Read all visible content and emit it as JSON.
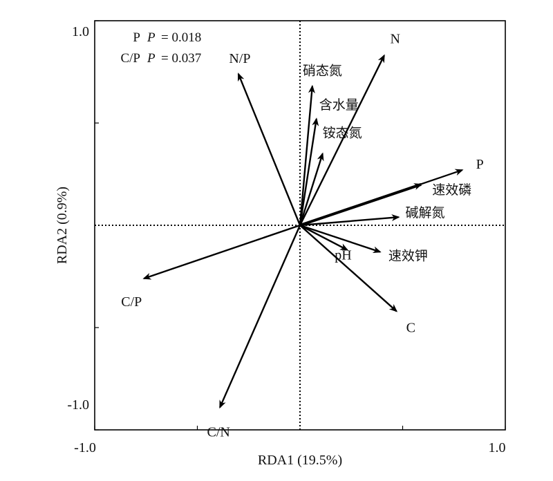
{
  "chart_data": {
    "type": "biplot",
    "xlabel": "RDA1 (19.5%)",
    "ylabel": "RDA2 (0.9%)",
    "xlim": [
      -1.0,
      1.0
    ],
    "ylim": [
      -1.0,
      1.0
    ],
    "x_tick_labels": [
      {
        "value": -1.0,
        "label": "-1.0"
      },
      {
        "value": 1.0,
        "label": "1.0"
      }
    ],
    "y_tick_labels": [
      {
        "value": 1.0,
        "label": "1.0"
      },
      {
        "value": -1.0,
        "label": "-1.0"
      }
    ],
    "minor_ticks_x": [
      -0.5,
      0.5
    ],
    "minor_ticks_y": [
      0.5,
      -0.5
    ],
    "zero_lines": "dotted",
    "annotations": [
      {
        "term": "P",
        "p_label": "P",
        "p_value": "= 0.018"
      },
      {
        "term": "C/P",
        "p_label": "P",
        "p_value": "= 0.037"
      }
    ],
    "vectors": [
      {
        "name": "N",
        "x": 0.41,
        "y": 0.83
      },
      {
        "name": "N/P",
        "x": -0.3,
        "y": 0.74
      },
      {
        "name": "硝态氮",
        "x": 0.06,
        "y": 0.68
      },
      {
        "name": "含水量",
        "x": 0.08,
        "y": 0.52
      },
      {
        "name": "铵态氮",
        "x": 0.11,
        "y": 0.35
      },
      {
        "name": "P",
        "x": 0.79,
        "y": 0.27
      },
      {
        "name": "速效磷",
        "x": 0.59,
        "y": 0.2
      },
      {
        "name": "碱解氮",
        "x": 0.48,
        "y": 0.04
      },
      {
        "name": "pH",
        "x": 0.23,
        "y": -0.12
      },
      {
        "name": "速效钾",
        "x": 0.39,
        "y": -0.13
      },
      {
        "name": "C",
        "x": 0.47,
        "y": -0.42
      },
      {
        "name": "C/P",
        "x": -0.76,
        "y": -0.26
      },
      {
        "name": "C/N",
        "x": -0.39,
        "y": -0.89
      }
    ]
  }
}
